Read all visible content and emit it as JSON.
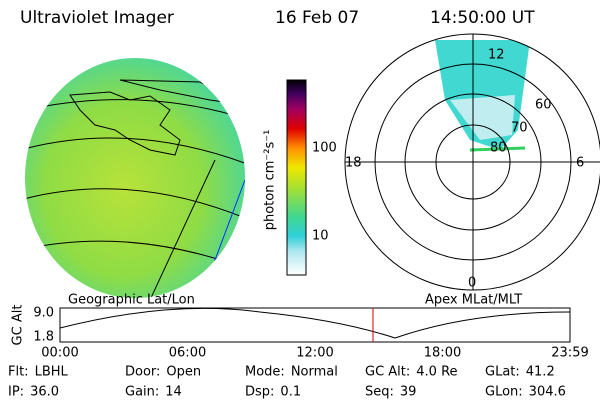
{
  "header": {
    "title": "Ultraviolet Imager",
    "date": "16 Feb 07",
    "time": "14:50:00 UT"
  },
  "colorbar": {
    "label": "photon cm⁻²s⁻¹",
    "ticks": [
      "100",
      "10"
    ]
  },
  "map_caption": "Geographic Lat/Lon",
  "polar": {
    "caption": "Apex MLat/MLT",
    "mlt_labels": [
      "12",
      "18",
      "6",
      "0"
    ],
    "ring_labels": [
      "60",
      "70",
      "80"
    ]
  },
  "timeline": {
    "ylabel": "GC Alt",
    "yticks": [
      "9.0",
      "1.8"
    ],
    "xticks": [
      "00:00",
      "06:00",
      "12:00",
      "18:00",
      "23:59"
    ]
  },
  "footer": {
    "rows": [
      [
        {
          "label": "Flt:",
          "value": "LBHL"
        },
        {
          "label": "Door:",
          "value": "Open"
        },
        {
          "label": "Mode:",
          "value": "Normal"
        },
        {
          "label": "GC Alt:",
          "value": "4.0 Re"
        },
        {
          "label": "GLat:",
          "value": "41.2"
        }
      ],
      [
        {
          "label": "IP:",
          "value": "36.0"
        },
        {
          "label": "Gain:",
          "value": "14"
        },
        {
          "label": "Dsp:",
          "value": "0.1"
        },
        {
          "label": "Seq:",
          "value": "39"
        },
        {
          "label": "GLon:",
          "value": "304.6"
        }
      ]
    ]
  }
}
